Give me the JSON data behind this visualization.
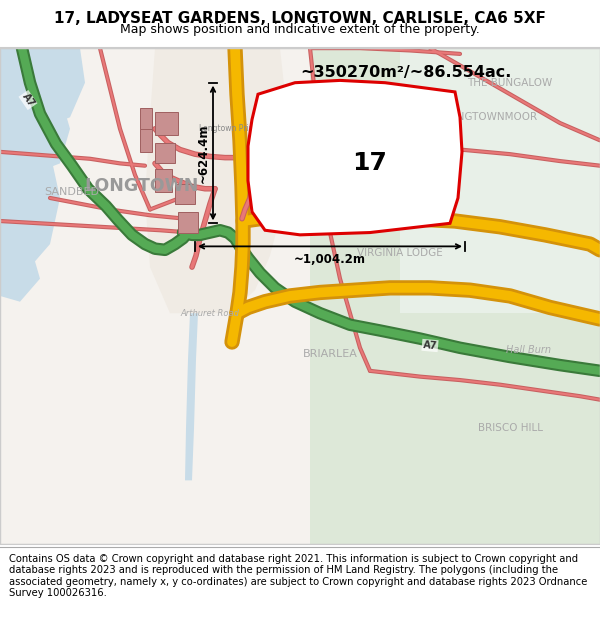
{
  "title_line1": "17, LADYSEAT GARDENS, LONGTOWN, CARLISLE, CA6 5XF",
  "title_line2": "Map shows position and indicative extent of the property.",
  "footer_text": "Contains OS data © Crown copyright and database right 2021. This information is subject to Crown copyright and database rights 2023 and is reproduced with the permission of HM Land Registry. The polygons (including the associated geometry, namely x, y co-ordinates) are subject to Crown copyright and database rights 2023 Ordnance Survey 100026316.",
  "area_label": "~350270m²/~86.554ac.",
  "width_label": "~1,004.2m",
  "height_label": "~624.4m",
  "plot_number": "17",
  "plot_fill_color": "#ffffff",
  "plot_edge_color": "#dd0000",
  "plot_edge_width": 2.2,
  "title_fontsize": 11,
  "subtitle_fontsize": 9,
  "footer_fontsize": 7.2,
  "plot_number_fontsize": 18,
  "header_bg": "#ffffff",
  "footer_bg": "#ffffff",
  "map_bg": "#f7f4f0",
  "road_orange_outer": "#d4920a",
  "road_orange_inner": "#f5b800",
  "road_orange_fill": "#fdd060",
  "road_green_outer": "#3a7a3a",
  "road_green_inner": "#55aa55",
  "road_green_fill": "#88cc88",
  "road_minor_color": "#e87878",
  "building_fill": "#c89090",
  "building_edge": "#a06060",
  "water_color": "#c8dce8",
  "field_color": "#dde8d8",
  "field2_color": "#e8f0e8",
  "town_bg": "#f0ebe4"
}
